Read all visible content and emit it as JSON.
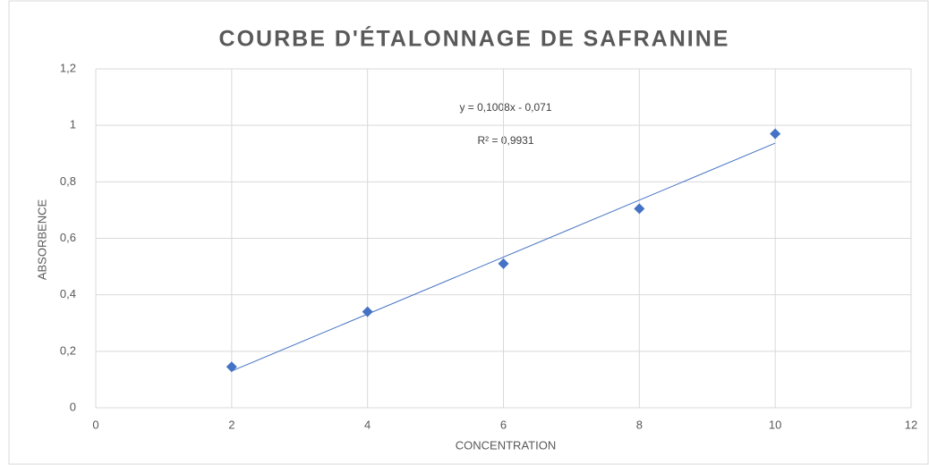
{
  "chart_data": {
    "type": "scatter",
    "title": "COURBE D'ÉTALONNAGE DE SAFRANINE",
    "xlabel": "CONCENTRATION",
    "ylabel": "ABSORBENCE",
    "x": [
      2,
      4,
      6,
      8,
      10
    ],
    "values": [
      0.145,
      0.34,
      0.51,
      0.705,
      0.97
    ],
    "color": "#4472c4",
    "trendline": {
      "x": [
        2,
        10
      ],
      "values": [
        0.13,
        0.937
      ],
      "color": "#4472c4"
    },
    "annotations": [
      "y = 0,1008x - 0,071",
      "R² = 0,9931"
    ],
    "xlim": [
      0,
      12
    ],
    "xticks": [
      0,
      2,
      4,
      6,
      8,
      10,
      12
    ],
    "ylim": [
      0,
      1.2
    ],
    "yticks": [
      0,
      {
        "value": 0.2,
        "label": "0,2"
      },
      {
        "value": 0.4,
        "label": "0,4"
      },
      {
        "value": 0.6,
        "label": "0,6"
      },
      {
        "value": 0.8,
        "label": "0,8"
      },
      1,
      {
        "value": 1.2,
        "label": "1,2"
      }
    ],
    "grid": true
  }
}
